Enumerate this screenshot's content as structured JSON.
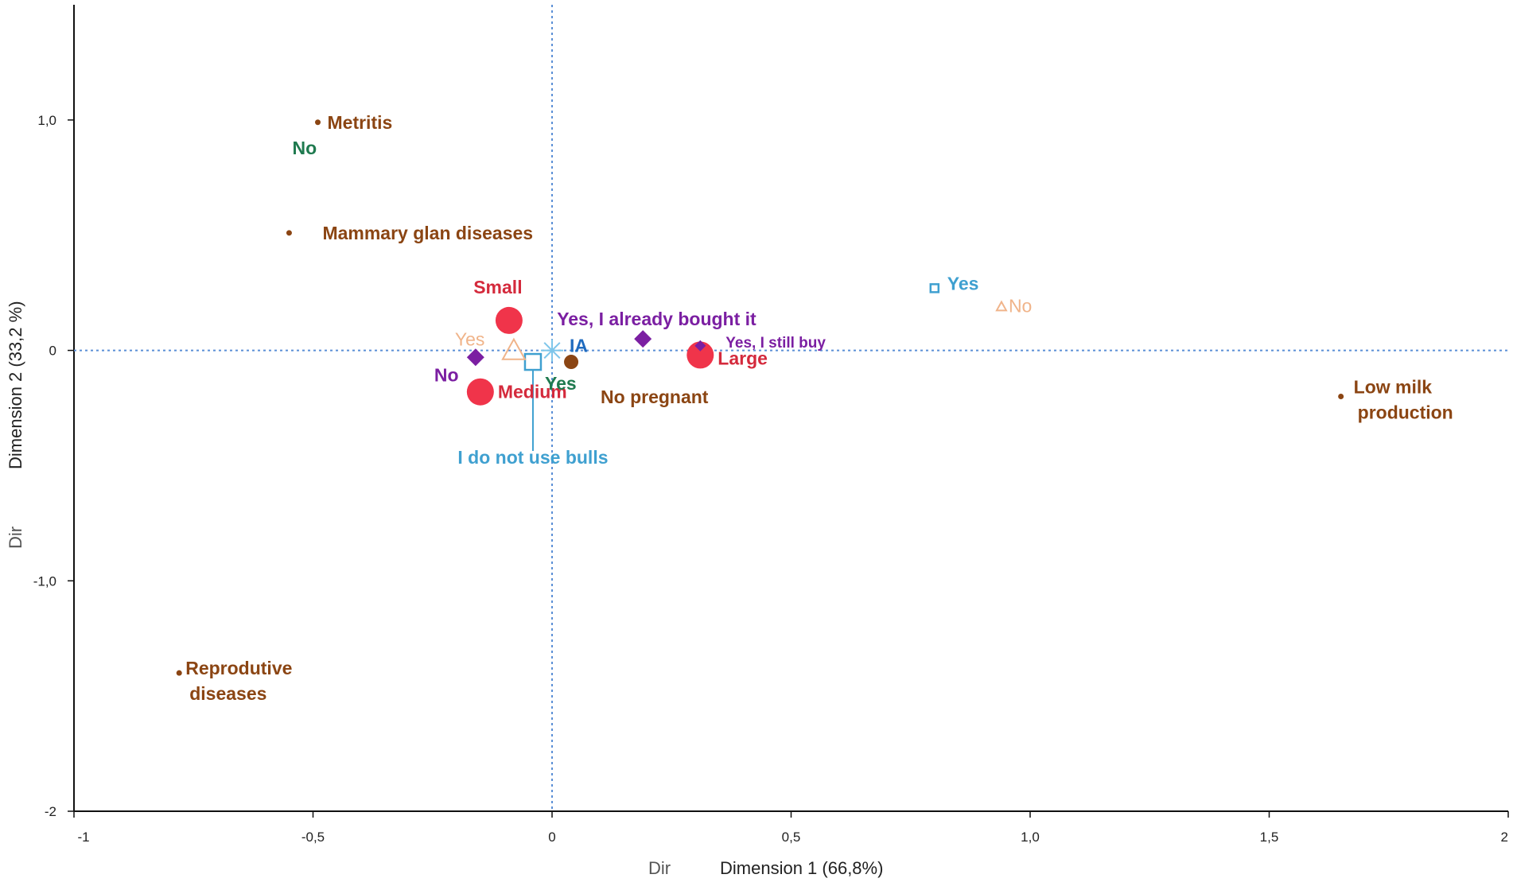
{
  "chart_data": {
    "type": "scatter",
    "title": "",
    "xlabel": "Dimension 1 (66,8%)",
    "ylabel": "Dimension 2 (33,2 %)",
    "xlim": [
      -1,
      2
    ],
    "ylim": [
      -2,
      1.5
    ],
    "x_ticks": [
      {
        "value": -1,
        "label": "-1"
      },
      {
        "value": -0.5,
        "label": "-0,5"
      },
      {
        "value": 0,
        "label": "0"
      },
      {
        "value": 0.5,
        "label": "0,5"
      },
      {
        "value": 1,
        "label": "1,0"
      },
      {
        "value": 1.5,
        "label": "1,5"
      },
      {
        "value": 2,
        "label": "2"
      }
    ],
    "y_ticks": [
      {
        "value": 1,
        "label": "1,0"
      },
      {
        "value": 0,
        "label": "0"
      },
      {
        "value": -1,
        "label": "-1,0"
      },
      {
        "value": -2,
        "label": "-2"
      }
    ],
    "stray_labels": {
      "x_extra": "Dir",
      "y_extra": "Dir"
    },
    "colors": {
      "disease": "#8B4513",
      "size": "#D42A3C",
      "size_marker": "#F0344A",
      "buy": "#7B1FA2",
      "bulls": "#3FA0D0",
      "ia": "#1F6BBF",
      "preg_yes": "#1F7A4F",
      "orange_light": "#F0B48A",
      "axis_line": "#5B8FD6"
    },
    "series": [
      {
        "name": "Diseases",
        "color_key": "disease",
        "points": [
          {
            "label": "Metritis",
            "x": -0.49,
            "y": 0.99,
            "marker": "dot-small"
          },
          {
            "label": "Mammary glan diseases",
            "x": -0.55,
            "y": 0.51,
            "marker": "dot-small"
          },
          {
            "label": "Low milk production",
            "x": 1.65,
            "y": -0.2,
            "marker": "dot-small"
          },
          {
            "label": "Reprodutive diseases",
            "x": -0.78,
            "y": -1.4,
            "marker": "dot-small"
          },
          {
            "label": "No pregnant",
            "x": 0.04,
            "y": -0.05,
            "marker": "dot-medium"
          }
        ]
      },
      {
        "name": "Herd size",
        "color_key": "size",
        "points": [
          {
            "label": "Small",
            "x": -0.09,
            "y": 0.13,
            "marker": "circle-large"
          },
          {
            "label": "Medium",
            "x": -0.15,
            "y": -0.18,
            "marker": "circle-large"
          },
          {
            "label": "Large",
            "x": 0.31,
            "y": -0.02,
            "marker": "circle-large"
          }
        ]
      },
      {
        "name": "Buying",
        "color_key": "buy",
        "points": [
          {
            "label": "Yes, I already bought it",
            "x": 0.19,
            "y": 0.05,
            "marker": "diamond"
          },
          {
            "label": "Yes, I still buy",
            "x": 0.31,
            "y": 0.02,
            "marker": "diamond-small"
          },
          {
            "label": "No",
            "x": -0.16,
            "y": -0.03,
            "marker": "diamond"
          }
        ]
      },
      {
        "name": "Bulls",
        "color_key": "bulls",
        "points": [
          {
            "label": "Yes",
            "x": 0.8,
            "y": 0.27,
            "marker": "square-small"
          },
          {
            "label": "I do not use bulls",
            "x": -0.04,
            "y": -0.05,
            "marker": "square"
          }
        ]
      },
      {
        "name": "Insemination",
        "color_key": "ia",
        "points": [
          {
            "label": "IA",
            "x": 0.0,
            "y": 0.0,
            "marker": "star"
          }
        ]
      },
      {
        "name": "Pregnancy check",
        "color_key": "preg_yes",
        "points": [
          {
            "label": "No",
            "x": -0.49,
            "y": 0.99,
            "marker": "none"
          },
          {
            "label": "Yes",
            "x": 0.03,
            "y": -0.05,
            "marker": "none"
          }
        ]
      },
      {
        "name": "Other",
        "color_key": "orange_light",
        "points": [
          {
            "label": "No",
            "x": 0.94,
            "y": 0.19,
            "marker": "triangle-small"
          },
          {
            "label": "Yes",
            "x": -0.08,
            "y": 0.0,
            "marker": "triangle"
          }
        ]
      }
    ]
  }
}
